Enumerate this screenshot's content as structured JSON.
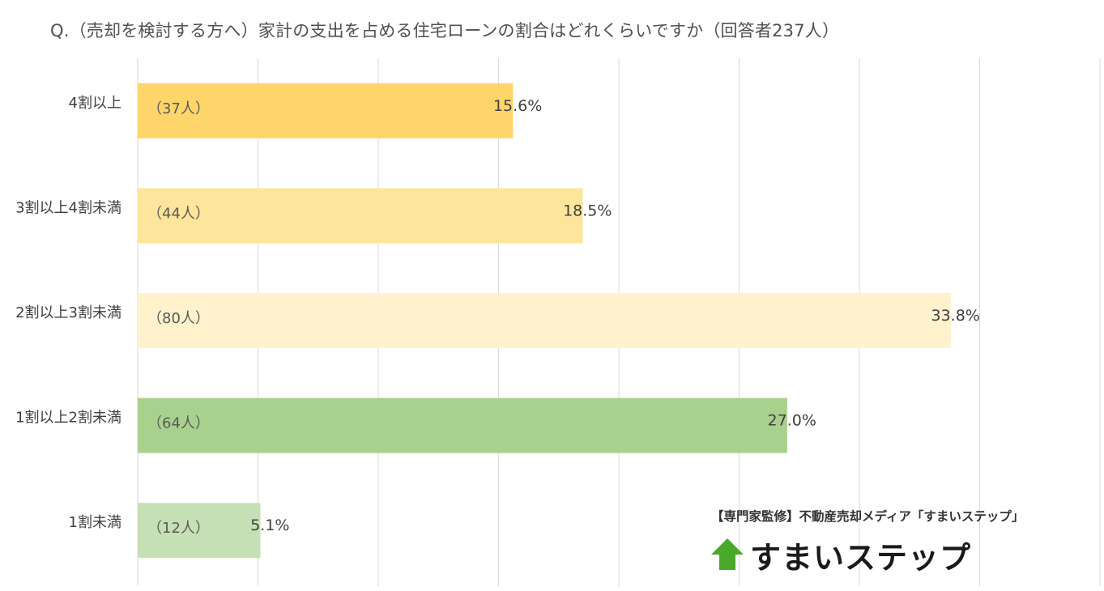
{
  "title": "Q.（売却を検討する方へ）家計の支出を占める住宅ローンの割合はどれくらいですか（回答者237人）",
  "credit": "【専門家監修】不動産売却メディア「すまいステップ」",
  "logo": {
    "text": "すまいステップ",
    "icon": "house-arrow-icon",
    "icon_color": "#4aa82a"
  },
  "chart_data": {
    "type": "bar",
    "orientation": "horizontal",
    "title": "Q.（売却を検討する方へ）家計の支出を占める住宅ローンの割合はどれくらいですか（回答者237人）",
    "categories": [
      "4割以上",
      "3割以上4割未満",
      "2割以上3割未満",
      "1割以上2割未満",
      "1割未満"
    ],
    "values": [
      15.6,
      18.5,
      33.8,
      27.0,
      5.1
    ],
    "value_labels": [
      "15.6%",
      "18.5%",
      "33.8%",
      "27.0%",
      "5.1%"
    ],
    "counts": [
      "（37人）",
      "（44人）",
      "（80人）",
      "（64人）",
      "（12人）"
    ],
    "colors": [
      "#fdd56a",
      "#fde59b",
      "#fff2cc",
      "#a9d18e",
      "#c5e0b4"
    ],
    "xlim": [
      0,
      40
    ],
    "grid": true,
    "xlabel": "",
    "ylabel": ""
  }
}
